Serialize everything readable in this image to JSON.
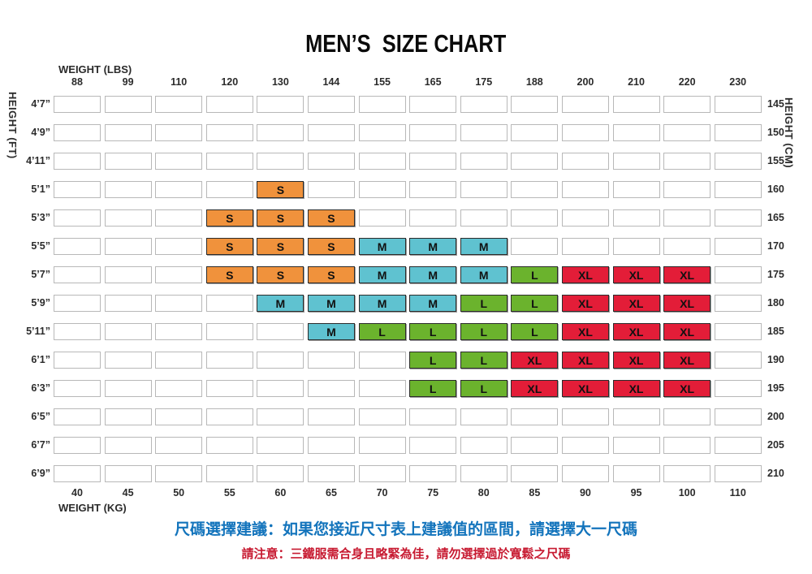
{
  "title": "MEN’S  SIZE CHART",
  "notes": {
    "advice": "尺碼選擇建議：如果您接近尺寸表上建議值的區間，請選擇大一尺碼",
    "advice_color": "#1374BC",
    "warning": "請注意：三鐵服需合身且略緊為佳，請勿選擇過於寬鬆之尺碼",
    "warning_color": "#C71A31"
  },
  "chart_data": {
    "type": "heatmap",
    "title": "MEN’S SIZE CHART",
    "x_top": {
      "label": "WEIGHT (LBS)",
      "ticks": [
        "88",
        "99",
        "110",
        "120",
        "130",
        "144",
        "155",
        "165",
        "175",
        "188",
        "200",
        "210",
        "220",
        "230"
      ]
    },
    "x_bottom": {
      "label": "WEIGHT (KG)",
      "ticks": [
        "40",
        "45",
        "50",
        "55",
        "60",
        "65",
        "70",
        "75",
        "80",
        "85",
        "90",
        "95",
        "100",
        "110"
      ]
    },
    "y_left": {
      "label": "HEIGHT (FT)",
      "ticks": [
        "4’7”",
        "4’9”",
        "4’11”",
        "5’1”",
        "5’3”",
        "5’5”",
        "5’7”",
        "5’9”",
        "5’11”",
        "6’1”",
        "6’3”",
        "6’5”",
        "6’7”",
        "6’9”"
      ]
    },
    "y_right": {
      "label": "HEIGHT (CM)",
      "ticks": [
        "145",
        "150",
        "155",
        "160",
        "165",
        "170",
        "175",
        "180",
        "185",
        "190",
        "195",
        "200",
        "205",
        "210"
      ]
    },
    "size_colors": {
      "S": "#F0923C",
      "M": "#5FC2D0",
      "L": "#6BB32D",
      "XL": "#E31D38"
    },
    "cells": [
      [
        "",
        "",
        "",
        "",
        "",
        "",
        "",
        "",
        "",
        "",
        "",
        "",
        "",
        ""
      ],
      [
        "",
        "",
        "",
        "",
        "",
        "",
        "",
        "",
        "",
        "",
        "",
        "",
        "",
        ""
      ],
      [
        "",
        "",
        "",
        "",
        "",
        "",
        "",
        "",
        "",
        "",
        "",
        "",
        "",
        ""
      ],
      [
        "",
        "",
        "",
        "",
        "S",
        "",
        "",
        "",
        "",
        "",
        "",
        "",
        "",
        ""
      ],
      [
        "",
        "",
        "",
        "S",
        "S",
        "S",
        "",
        "",
        "",
        "",
        "",
        "",
        "",
        ""
      ],
      [
        "",
        "",
        "",
        "S",
        "S",
        "S",
        "M",
        "M",
        "M",
        "",
        "",
        "",
        "",
        ""
      ],
      [
        "",
        "",
        "",
        "S",
        "S",
        "S",
        "M",
        "M",
        "M",
        "L",
        "XL",
        "XL",
        "XL",
        ""
      ],
      [
        "",
        "",
        "",
        "",
        "M",
        "M",
        "M",
        "M",
        "L",
        "L",
        "XL",
        "XL",
        "XL",
        ""
      ],
      [
        "",
        "",
        "",
        "",
        "",
        "M",
        "L",
        "L",
        "L",
        "L",
        "XL",
        "XL",
        "XL",
        ""
      ],
      [
        "",
        "",
        "",
        "",
        "",
        "",
        "",
        "L",
        "L",
        "XL",
        "XL",
        "XL",
        "XL",
        ""
      ],
      [
        "",
        "",
        "",
        "",
        "",
        "",
        "",
        "L",
        "L",
        "XL",
        "XL",
        "XL",
        "XL",
        ""
      ],
      [
        "",
        "",
        "",
        "",
        "",
        "",
        "",
        "",
        "",
        "",
        "",
        "",
        "",
        ""
      ],
      [
        "",
        "",
        "",
        "",
        "",
        "",
        "",
        "",
        "",
        "",
        "",
        "",
        "",
        ""
      ],
      [
        "",
        "",
        "",
        "",
        "",
        "",
        "",
        "",
        "",
        "",
        "",
        "",
        "",
        ""
      ]
    ],
    "grid_on": true,
    "legend_position": "none"
  }
}
